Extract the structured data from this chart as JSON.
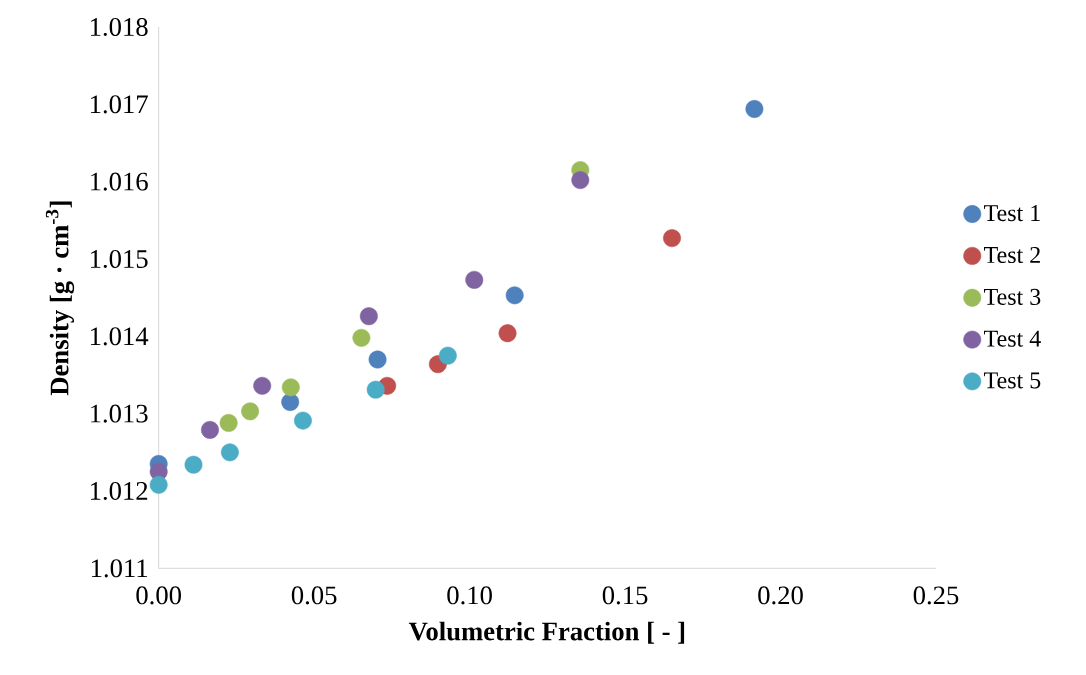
{
  "chart_data": {
    "type": "scatter",
    "xlabel": "Volumetric Fraction [ - ]",
    "ylabel": "Density [g · cm$^{-3}$]",
    "xlim": [
      0,
      0.25
    ],
    "ylim": [
      1.011,
      1.018
    ],
    "xticks": [
      {
        "value": 0,
        "label": "0.00"
      },
      {
        "value": 0.05,
        "label": "0.05"
      },
      {
        "value": 0.1,
        "label": "0.10"
      },
      {
        "value": 0.15,
        "label": "0.15"
      },
      {
        "value": 0.2,
        "label": "0.20"
      },
      {
        "value": 0.25,
        "label": "0.25"
      }
    ],
    "yticks": [
      1.011,
      1.012,
      1.013,
      1.014,
      1.015,
      1.016,
      1.017,
      1.018
    ],
    "grid": false,
    "legend": "right",
    "marker": "circle",
    "series": [
      {
        "name": "Test 1",
        "color": "#4f81bd",
        "x": [
          0,
          0.0423,
          0.0704,
          0.1145,
          0.1916
        ],
        "values": [
          1.01235,
          1.01315,
          1.0137,
          1.01453,
          1.01694
        ]
      },
      {
        "name": "Test 2",
        "color": "#c0504d",
        "x": [
          0.0735,
          0.0898,
          0.1122,
          0.1651
        ],
        "values": [
          1.01336,
          1.01364,
          1.01404,
          1.01527
        ]
      },
      {
        "name": "Test 3",
        "color": "#9bbb59",
        "x": [
          0.0225,
          0.0294,
          0.0425,
          0.0652,
          0.1356
        ],
        "values": [
          1.01288,
          1.01303,
          1.01334,
          1.01398,
          1.01615
        ]
      },
      {
        "name": "Test 4",
        "color": "#8064a2",
        "x": [
          0,
          0.0165,
          0.0333,
          0.0676,
          0.1015,
          0.1356
        ],
        "values": [
          1.01225,
          1.01279,
          1.01336,
          1.01426,
          1.01473,
          1.01602
        ]
      },
      {
        "name": "Test 5",
        "color": "#4bacc6",
        "x": [
          0,
          0.0112,
          0.0229,
          0.0464,
          0.0698,
          0.093
        ],
        "values": [
          1.01208,
          1.01234,
          1.0125,
          1.01291,
          1.01331,
          1.01375
        ]
      }
    ]
  }
}
